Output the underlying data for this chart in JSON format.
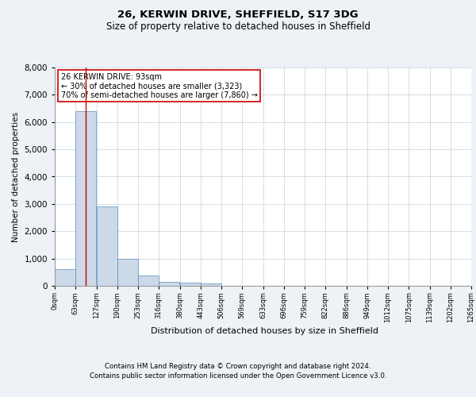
{
  "title1": "26, KERWIN DRIVE, SHEFFIELD, S17 3DG",
  "title2": "Size of property relative to detached houses in Sheffield",
  "xlabel": "Distribution of detached houses by size in Sheffield",
  "ylabel": "Number of detached properties",
  "bar_color": "#ccd9e8",
  "bar_edge_color": "#5b8db8",
  "vline_x": 93,
  "vline_color": "#cc0000",
  "annotation_title": "26 KERWIN DRIVE: 93sqm",
  "annotation_line1": "← 30% of detached houses are smaller (3,323)",
  "annotation_line2": "70% of semi-detached houses are larger (7,860) →",
  "annotation_box_color": "#ffffff",
  "annotation_box_edge": "#cc0000",
  "bin_edges": [
    0,
    63,
    127,
    190,
    253,
    316,
    380,
    443,
    506,
    569,
    633,
    696,
    759,
    822,
    886,
    949,
    1012,
    1075,
    1139,
    1202,
    1265
  ],
  "bar_heights": [
    600,
    6400,
    2900,
    1000,
    380,
    160,
    120,
    80,
    5,
    3,
    2,
    1,
    1,
    0,
    0,
    0,
    0,
    0,
    0,
    0
  ],
  "tick_labels": [
    "0sqm",
    "63sqm",
    "127sqm",
    "190sqm",
    "253sqm",
    "316sqm",
    "380sqm",
    "443sqm",
    "506sqm",
    "569sqm",
    "633sqm",
    "696sqm",
    "759sqm",
    "822sqm",
    "886sqm",
    "949sqm",
    "1012sqm",
    "1075sqm",
    "1139sqm",
    "1202sqm",
    "1265sqm"
  ],
  "ylim": [
    0,
    8000
  ],
  "yticks": [
    0,
    1000,
    2000,
    3000,
    4000,
    5000,
    6000,
    7000,
    8000
  ],
  "background_color": "#eef2f7",
  "plot_bg_color": "#ffffff",
  "footer1": "Contains HM Land Registry data © Crown copyright and database right 2024.",
  "footer2": "Contains public sector information licensed under the Open Government Licence v3.0."
}
